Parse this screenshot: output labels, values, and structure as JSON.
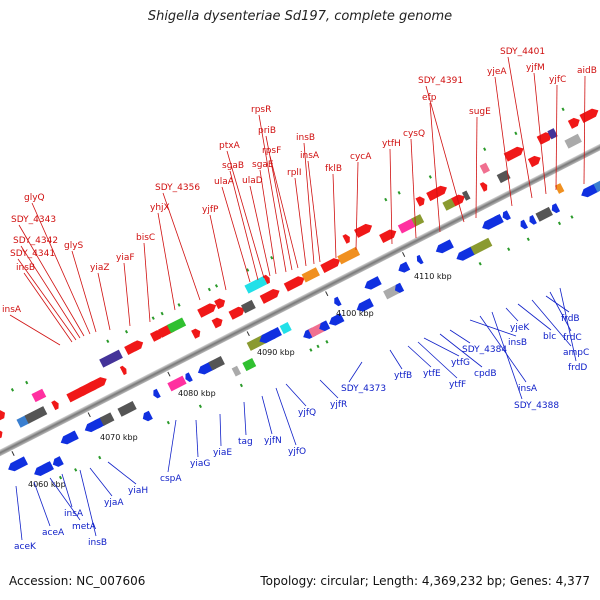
{
  "title": "Shigella dysenteriae Sd197, complete genome",
  "footer": {
    "accession": "Accession: NC_007606",
    "summary": "Topology: circular; Length: 4,369,232 bp; Genes: 4,377"
  },
  "colors": {
    "top_strand_label": "#d01010",
    "bottom_strand_label": "#1020c8"
  },
  "scale_ticks": [
    "4060 kbp",
    "4070 kbp",
    "4080 kbp",
    "4090 kbp",
    "4100 kbp",
    "4110 kbp"
  ],
  "top_labels": [
    "insA",
    "insB",
    "SDY_4341",
    "SDY_4342",
    "SDY_4343",
    "glyQ",
    "glyS",
    "yiaZ",
    "yiaF",
    "bisC",
    "yhjX",
    "SDY_4356",
    "yjfP",
    "ulaA",
    "sgaB",
    "ptxA",
    "ulaD",
    "sgaE",
    "rpsR",
    "priB",
    "rpsF",
    "rplI",
    "insB",
    "insA",
    "fklB",
    "cycA",
    "ytfH",
    "cysQ",
    "efp",
    "SDY_4391",
    "sugE",
    "yjeA",
    "SDY_4401",
    "yjfM",
    "yjfC",
    "aidB"
  ],
  "bottom_labels": [
    "aceK",
    "aceA",
    "metA",
    "insA",
    "insB",
    "yjaA",
    "yiaH",
    "cspA",
    "yiaG",
    "yiaE",
    "tag",
    "yjfN",
    "yjfO",
    "yjfQ",
    "yjfR",
    "SDY_4373",
    "ytfB",
    "ytfE",
    "ytfF",
    "ytfG",
    "cpdB",
    "SDY_4384",
    "insB",
    "insA",
    "SDY_4388",
    "yjeK",
    "blc",
    "ampC",
    "frdB",
    "frdC",
    "frdD"
  ]
}
